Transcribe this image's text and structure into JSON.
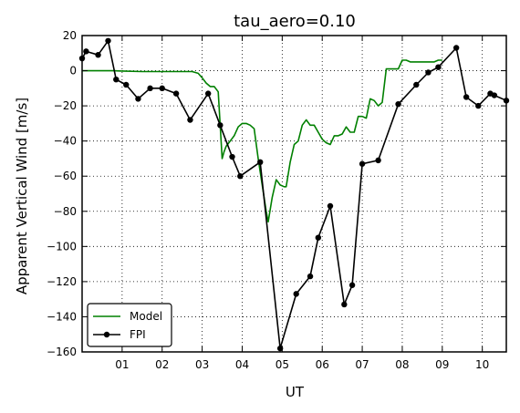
{
  "chart_data": {
    "type": "line",
    "title": "tau_aero=0.10",
    "xlabel": "UT",
    "ylabel": "Apparent Vertical Wind [m/s]",
    "xlim": [
      0,
      10.6
    ],
    "ylim": [
      -160,
      20
    ],
    "xticks": [
      1,
      2,
      3,
      4,
      5,
      6,
      7,
      8,
      9,
      10
    ],
    "xtick_labels": [
      "01",
      "02",
      "03",
      "04",
      "05",
      "06",
      "07",
      "08",
      "09",
      "10"
    ],
    "yticks": [
      -160,
      -140,
      -120,
      -100,
      -80,
      -60,
      -40,
      -20,
      0,
      20
    ],
    "ytick_labels": [
      "−160",
      "−140",
      "−120",
      "−100",
      "−80",
      "−60",
      "−40",
      "−20",
      "0",
      "20"
    ],
    "grid": true,
    "legend_position": "lower-left",
    "series": [
      {
        "name": "Model",
        "color": "#008000",
        "marker": false,
        "x": [
          0.0,
          0.3,
          0.6,
          0.8,
          1.0,
          1.5,
          2.0,
          2.5,
          2.75,
          2.9,
          3.0,
          3.1,
          3.2,
          3.3,
          3.4,
          3.5,
          3.55,
          3.6,
          3.7,
          3.8,
          3.9,
          4.0,
          4.1,
          4.2,
          4.3,
          4.4,
          4.5,
          4.6,
          4.65,
          4.7,
          4.75,
          4.85,
          4.95,
          5.05,
          5.1,
          5.2,
          5.3,
          5.4,
          5.5,
          5.6,
          5.7,
          5.8,
          5.9,
          6.0,
          6.1,
          6.2,
          6.3,
          6.4,
          6.5,
          6.6,
          6.7,
          6.8,
          6.9,
          7.0,
          7.1,
          7.2,
          7.3,
          7.4,
          7.5,
          7.6,
          7.7,
          7.8,
          7.9,
          8.0,
          8.1,
          8.2,
          8.3,
          8.4,
          8.5,
          8.6,
          8.7,
          8.8,
          8.9,
          9.0
        ],
        "y": [
          0,
          0,
          0,
          0,
          -0.2,
          -0.5,
          -0.5,
          -0.5,
          -0.5,
          -1.5,
          -4,
          -7,
          -9,
          -9,
          -12,
          -50,
          -46,
          -43,
          -40,
          -37,
          -32,
          -30,
          -30,
          -31,
          -33,
          -50,
          -65,
          -80,
          -86,
          -79,
          -72,
          -62,
          -65,
          -66,
          -66,
          -52,
          -42,
          -40,
          -31,
          -28,
          -31,
          -31,
          -35,
          -39,
          -41,
          -42,
          -37,
          -37,
          -36,
          -32,
          -35,
          -35,
          -26,
          -26,
          -27,
          -16,
          -17,
          -20,
          -18,
          1,
          1,
          1,
          1,
          6,
          6,
          5,
          5,
          5,
          5,
          5,
          5,
          5,
          6,
          6
        ]
      },
      {
        "name": "FPI",
        "color": "#000000",
        "marker": true,
        "x": [
          0.0,
          0.1,
          0.4,
          0.65,
          0.85,
          1.1,
          1.4,
          1.7,
          2.0,
          2.35,
          2.7,
          3.15,
          3.45,
          3.75,
          3.95,
          4.45,
          4.95,
          5.35,
          5.7,
          5.9,
          6.2,
          6.55,
          6.75,
          7.0,
          7.4,
          7.9,
          8.35,
          8.65,
          8.9,
          9.35,
          9.6,
          9.9,
          10.2,
          10.3,
          10.6
        ],
        "y": [
          7,
          11,
          9,
          17,
          -5,
          -8,
          -16,
          -10,
          -10,
          -13,
          -28,
          -13,
          -31,
          -49,
          -60,
          -52,
          -158,
          -127,
          -117,
          -95,
          -77,
          -133,
          -122,
          -53,
          -51,
          -19,
          -8,
          -1,
          2,
          13,
          -15,
          -20,
          -13,
          -14,
          -17
        ]
      }
    ]
  }
}
